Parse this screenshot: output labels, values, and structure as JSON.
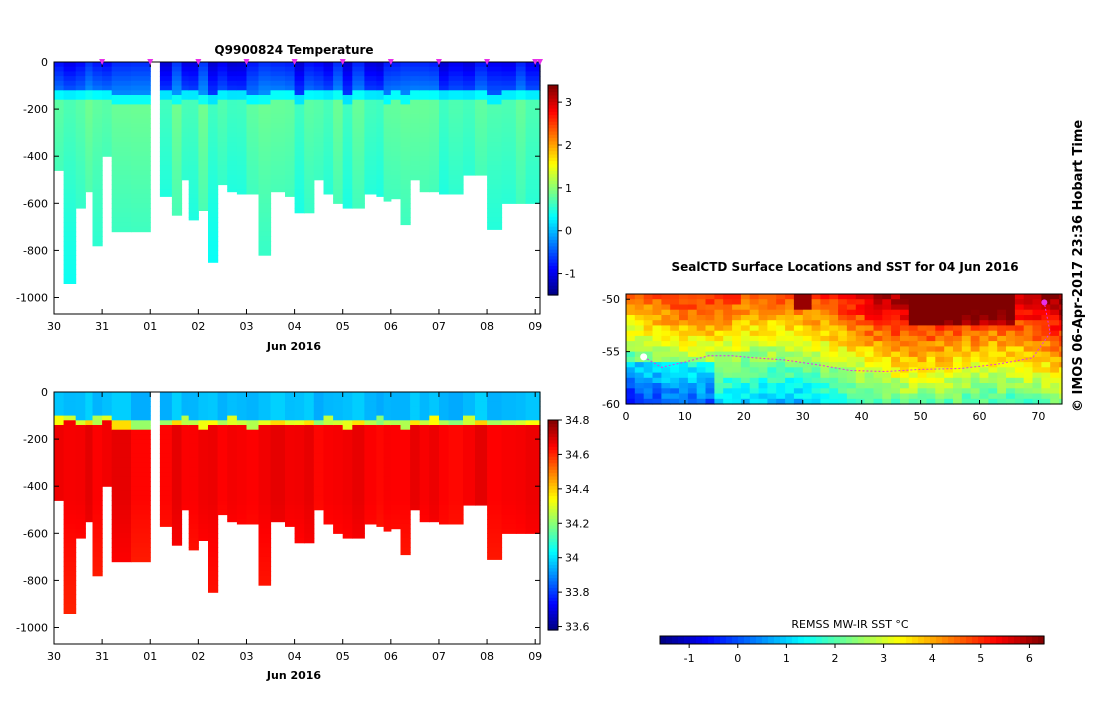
{
  "credit": "© IMOS 06-Apr-2017 23:36 Hobart Time",
  "chart_data": [
    {
      "id": "temperature",
      "type": "heatmap",
      "title": "Q9900824  Temperature",
      "xlabel": "Jun 2016",
      "x_tick_labels": [
        "30",
        "31",
        "01",
        "02",
        "03",
        "04",
        "05",
        "06",
        "07",
        "08",
        "09"
      ],
      "x_tick_values": [
        0,
        1,
        2,
        3,
        4,
        5,
        6,
        7,
        8,
        9,
        10
      ],
      "xlim": [
        0,
        10.1
      ],
      "y_tick_labels": [
        "0",
        "-200",
        "-400",
        "-600",
        "-800",
        "-1000"
      ],
      "y_tick_values": [
        0,
        -200,
        -400,
        -600,
        -800,
        -1000
      ],
      "ylim": [
        -1070,
        0
      ],
      "profile_times": [
        0.0,
        0.2,
        0.45,
        0.65,
        0.8,
        1.0,
        1.2,
        1.6,
        2.0,
        2.2,
        2.45,
        2.65,
        2.8,
        3.0,
        3.2,
        3.4,
        3.6,
        3.8,
        4.0,
        4.25,
        4.5,
        4.8,
        5.0,
        5.2,
        5.4,
        5.6,
        5.8,
        6.0,
        6.2,
        6.45,
        6.7,
        6.85,
        7.0,
        7.2,
        7.4,
        7.6,
        7.8,
        8.0,
        8.2,
        8.5,
        8.75,
        9.0,
        9.3,
        9.6,
        9.8,
        10.1
      ],
      "gap": [
        1.6,
        2.0
      ],
      "profile_max_depths": [
        -460,
        -940,
        -620,
        -550,
        -780,
        -400,
        -720,
        -720,
        null,
        -570,
        -650,
        -500,
        -670,
        -630,
        -850,
        -520,
        -550,
        -560,
        -560,
        -820,
        -550,
        -570,
        -640,
        -640,
        -500,
        -560,
        -600,
        -620,
        -620,
        -560,
        -570,
        -590,
        -580,
        -690,
        -500,
        -550,
        -550,
        -560,
        -560,
        -480,
        -480,
        -710,
        -600,
        -600,
        -600
      ],
      "mixed_layer_depths": [
        -120,
        -115,
        -125,
        -130,
        -120,
        -115,
        -140,
        -140,
        null,
        -125,
        -135,
        -120,
        -130,
        -140,
        -135,
        -130,
        -120,
        -130,
        -140,
        -135,
        -125,
        -130,
        -135,
        -125,
        -130,
        -120,
        -130,
        -140,
        -130,
        -125,
        -120,
        -135,
        -130,
        -140,
        -125,
        -130,
        -120,
        -125,
        -130,
        -120,
        -125,
        -135,
        -125,
        -125,
        -125
      ],
      "colorbar": {
        "min": -1.5,
        "max": 3.4,
        "tick_labels": [
          "3",
          "2",
          "1",
          "0",
          "-1"
        ],
        "tick_values": [
          3,
          2,
          1,
          0,
          -1
        ],
        "colormap": "jet"
      },
      "markers": {
        "color": "#e830e8",
        "x": [
          1,
          2,
          3,
          4,
          5,
          6,
          7,
          8,
          9,
          10,
          10.1
        ]
      }
    },
    {
      "id": "salinity",
      "type": "heatmap",
      "title": "",
      "xlabel": "Jun 2016",
      "x_tick_labels": [
        "30",
        "31",
        "01",
        "02",
        "03",
        "04",
        "05",
        "06",
        "07",
        "08",
        "09"
      ],
      "x_tick_values": [
        0,
        1,
        2,
        3,
        4,
        5,
        6,
        7,
        8,
        9,
        10
      ],
      "xlim": [
        0,
        10.1
      ],
      "y_tick_labels": [
        "0",
        "-200",
        "-400",
        "-600",
        "-800",
        "-1000"
      ],
      "y_tick_values": [
        0,
        -200,
        -400,
        -600,
        -800,
        -1000
      ],
      "ylim": [
        -1070,
        0
      ],
      "colorbar": {
        "min": 33.58,
        "max": 34.8,
        "tick_labels": [
          "34.8",
          "34.6",
          "34.4",
          "34.2",
          "34",
          "33.8",
          "33.6"
        ],
        "tick_values": [
          34.8,
          34.6,
          34.4,
          34.2,
          34.0,
          33.8,
          33.6
        ],
        "colormap": "jet"
      }
    },
    {
      "id": "map",
      "type": "heatmap",
      "title": "SealCTD Surface Locations and SST for 04 Jun 2016",
      "x_tick_labels": [
        "0",
        "10",
        "20",
        "30",
        "40",
        "50",
        "60",
        "70"
      ],
      "x_tick_values": [
        0,
        10,
        20,
        30,
        40,
        50,
        60,
        70
      ],
      "xlim": [
        0,
        74
      ],
      "y_tick_labels": [
        "-50",
        "-55",
        "-60"
      ],
      "y_tick_values": [
        -50,
        -55,
        -60
      ],
      "ylim": [
        -60,
        -49.5
      ],
      "track": {
        "color": "#e830e8",
        "points": [
          [
            3,
            -55.5
          ],
          [
            6,
            -56.5
          ],
          [
            10,
            -56
          ],
          [
            14,
            -55.4
          ],
          [
            18,
            -55.4
          ],
          [
            22,
            -55.6
          ],
          [
            27,
            -55.8
          ],
          [
            33,
            -56.3
          ],
          [
            38,
            -56.8
          ],
          [
            44,
            -56.9
          ],
          [
            50,
            -56.7
          ],
          [
            57,
            -56.6
          ],
          [
            63,
            -56.2
          ],
          [
            69,
            -55.6
          ],
          [
            72,
            -53.2
          ],
          [
            71,
            -50.3
          ]
        ]
      },
      "colorbar": {
        "label": "REMSS MW-IR SST °C",
        "min": -1.6,
        "max": 6.3,
        "tick_labels": [
          "-1",
          "0",
          "1",
          "2",
          "3",
          "4",
          "5",
          "6"
        ],
        "tick_values": [
          -1,
          0,
          1,
          2,
          3,
          4,
          5,
          6
        ],
        "colormap": "jet"
      }
    }
  ]
}
